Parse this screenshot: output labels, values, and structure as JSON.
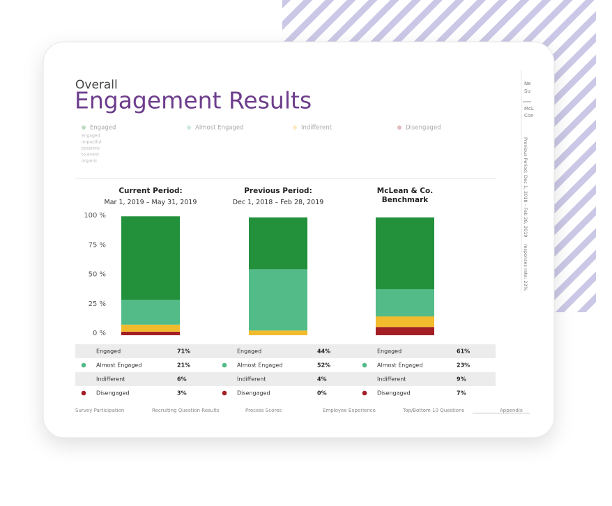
{
  "header": {
    "kicker": "Overall",
    "title": "Engagement Results"
  },
  "legend_note": [
    "Engaged",
    "impactful",
    "passions",
    "to event",
    "organiz"
  ],
  "side_panel": {
    "lines": [
      "Ne",
      "Su",
      "McL",
      "Con"
    ],
    "period": "Previous Period: Dec 1, 2018 – Feb 28, 2019",
    "rate": "responses rate: 22%"
  },
  "nav": [
    "Survey Participation",
    "Recruiting Question Results",
    "Process Scores",
    "Employee Experience",
    "Top/Bottom 10 Questions",
    "Appendix"
  ],
  "chart_data": {
    "type": "stacked_bar",
    "categories": [
      "Current Period:",
      "Previous Period:",
      "McLean & Co. Benchmark"
    ],
    "category_dates": [
      "Mar 1, 2019 – May 31, 2019",
      "Dec 1, 2018 – Feb 28, 2019",
      null
    ],
    "series": [
      {
        "name": "Engaged",
        "color": "#23913b",
        "values": [
          71,
          44,
          61
        ],
        "value_labels": [
          "71%",
          "44%",
          "61%"
        ]
      },
      {
        "name": "Almost Engaged",
        "color": "#52bb88",
        "values": [
          21,
          52,
          23
        ],
        "value_labels": [
          "21%",
          "52%",
          "23%"
        ]
      },
      {
        "name": "Indifferent",
        "color": "#f2bb2e",
        "values": [
          6,
          4,
          9
        ],
        "value_labels": [
          "6%",
          "4%",
          "9%"
        ]
      },
      {
        "name": "Disengaged",
        "color": "#a31f24",
        "values": [
          3,
          0,
          7
        ],
        "value_labels": [
          "3%",
          "0%",
          "7%"
        ]
      }
    ],
    "ylim": [
      0,
      100
    ],
    "yticks": [
      {
        "value": 0,
        "label": "0 %"
      },
      {
        "value": 25,
        "label": "25 %"
      },
      {
        "value": 50,
        "label": "50 %"
      },
      {
        "value": 75,
        "label": "75 %"
      },
      {
        "value": 100,
        "label": "100 %"
      }
    ]
  }
}
